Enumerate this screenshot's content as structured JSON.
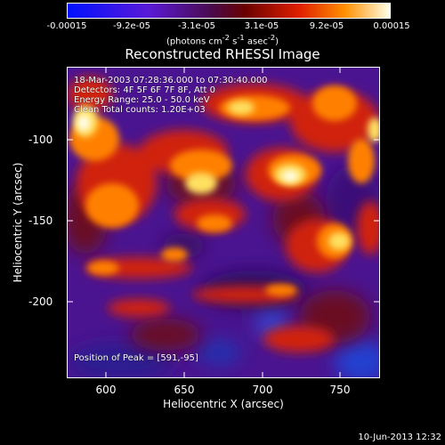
{
  "colorbar": {
    "ticks": [
      "-0.00015",
      "-9.2e-05",
      "-3.1e-05",
      "3.1e-05",
      "9.2e-05",
      "0.00015"
    ],
    "units_main": "(photons cm",
    "units_sup1": "-2",
    "units_mid": " s",
    "units_sup2": "-1",
    "units_end": " asec",
    "units_sup3": "-2",
    "units_close": ")"
  },
  "title": "Reconstructed RHESSI Image",
  "annotations": {
    "time": "18-Mar-2003 07:28:36.000 to 07:30:40.000",
    "detectors": "Detectors: 4F 5F 6F 7F 8F, Att 0",
    "energy": "Energy Range: 25.0 - 50.0 keV",
    "algorithm": "Clean    Total counts: 1.20E+03",
    "peak": "Position of Peak = [591,-95]"
  },
  "x_axis": {
    "title": "Heliocentric X (arcsec)",
    "ticks": [
      "600",
      "650",
      "700",
      "750"
    ]
  },
  "y_axis": {
    "title": "Heliocentric Y (arcsec)",
    "ticks": [
      "-100",
      "-150",
      "-200"
    ]
  },
  "timestamp": "10-Jun-2013 12:32"
}
